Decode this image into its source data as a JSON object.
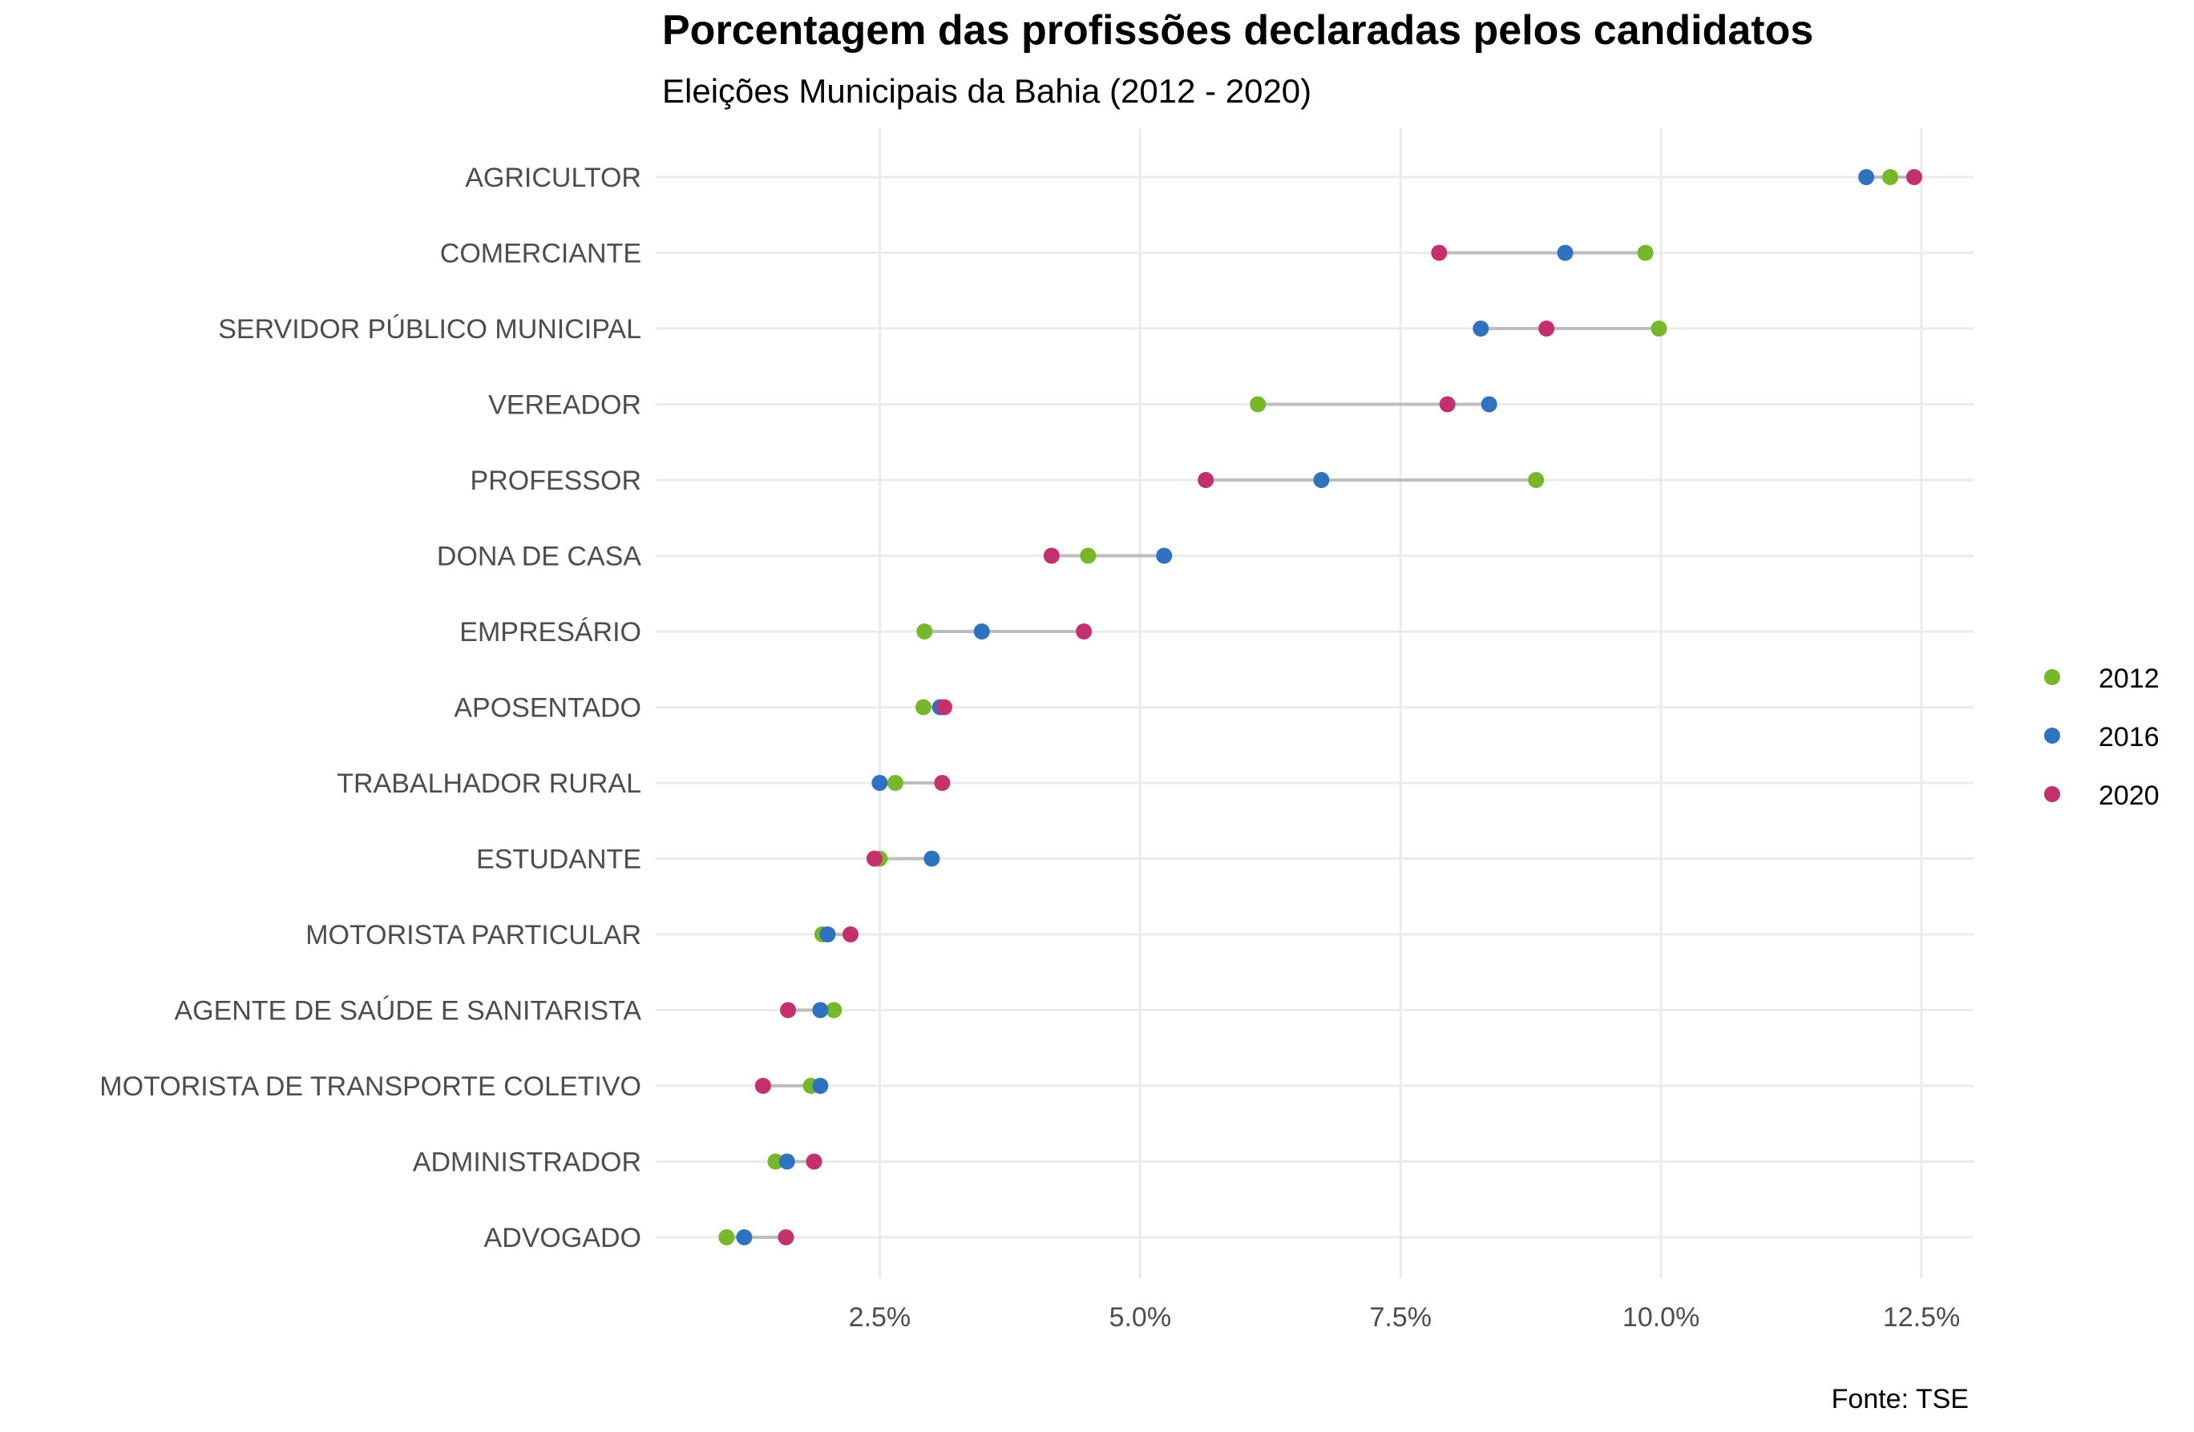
{
  "chart_data": {
    "type": "dumbbell",
    "title": "Porcentagem das profissões declaradas pelos candidatos",
    "subtitle": "Eleições Municipais da Bahia (2012 - 2020)",
    "caption": "Fonte: TSE",
    "xlabel": "",
    "ylabel": "",
    "x_ticks": [
      "2.5%",
      "5.0%",
      "7.5%",
      "10.0%",
      "12.5%"
    ],
    "x_tick_values": [
      2.5,
      5.0,
      7.5,
      10.0,
      12.5
    ],
    "xlim": [
      0.35,
      13.0
    ],
    "grid": true,
    "legend_position": "right",
    "legend": [
      {
        "name": "2012",
        "color": "#76b82a"
      },
      {
        "name": "2016",
        "color": "#2f72bf"
      },
      {
        "name": "2020",
        "color": "#c4306e"
      }
    ],
    "connector_color": "#bdbdbd",
    "categories": [
      "AGRICULTOR",
      "COMERCIANTE",
      "SERVIDOR PÚBLICO MUNICIPAL",
      "VEREADOR",
      "PROFESSOR",
      "DONA DE CASA",
      "EMPRESÁRIO",
      "APOSENTADO",
      "TRABALHADOR RURAL",
      "ESTUDANTE",
      "MOTORISTA PARTICULAR",
      "AGENTE DE SAÚDE E SANITARISTA",
      "MOTORISTA DE TRANSPORTE COLETIVO",
      "ADMINISTRADOR",
      "ADVOGADO"
    ],
    "series": [
      {
        "name": "2012",
        "values": [
          12.2,
          9.85,
          9.98,
          6.13,
          8.8,
          4.5,
          2.93,
          2.92,
          2.65,
          2.5,
          1.95,
          2.06,
          1.84,
          1.5,
          1.03
        ]
      },
      {
        "name": "2016",
        "values": [
          11.97,
          9.08,
          8.27,
          8.35,
          6.74,
          5.23,
          3.48,
          3.08,
          2.5,
          3.0,
          2.0,
          1.93,
          1.93,
          1.61,
          1.2
        ]
      },
      {
        "name": "2020",
        "values": [
          12.43,
          7.87,
          8.9,
          7.95,
          5.63,
          4.15,
          4.46,
          3.12,
          3.1,
          2.45,
          2.22,
          1.62,
          1.38,
          1.87,
          1.6
        ]
      }
    ]
  }
}
